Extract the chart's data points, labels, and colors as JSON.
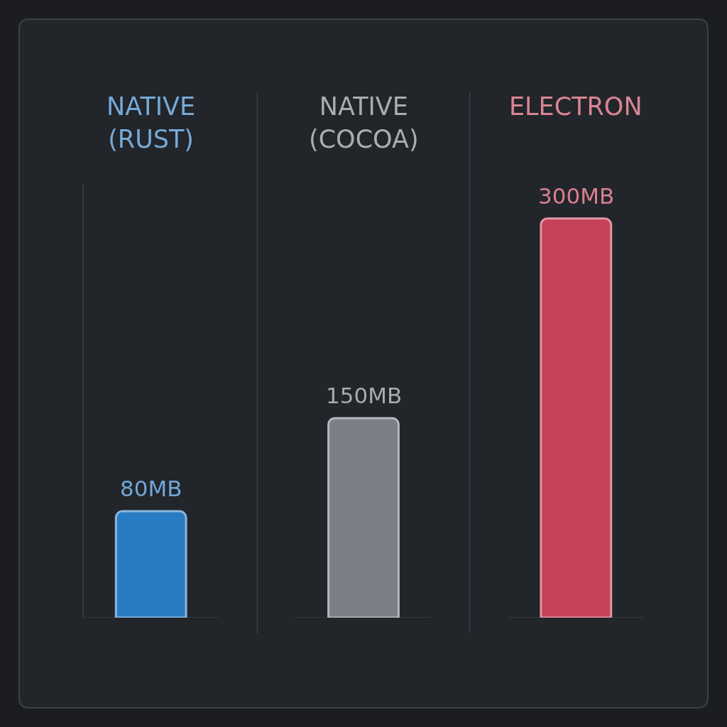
{
  "chart_data": {
    "type": "bar",
    "categories": [
      "NATIVE (RUST)",
      "NATIVE (COCOA)",
      "ELECTRON"
    ],
    "values": [
      80,
      150,
      300
    ],
    "colors": [
      "#2a7cc2",
      "#7b8087",
      "#c4425a"
    ],
    "value_labels": [
      "80MB",
      "150MB",
      "300MB"
    ]
  }
}
